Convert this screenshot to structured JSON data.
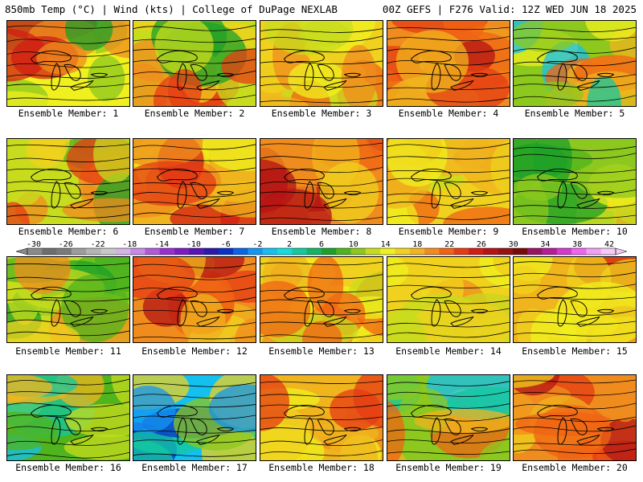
{
  "header": {
    "left": "850mb Temp (°C) | Wind (kts) | College of DuPage NEXLAB",
    "right": "00Z GEFS | F276 Valid: 12Z WED JUN 18 2025"
  },
  "members": [
    {
      "label": "Ensemble Member: 1",
      "palette": "mixed-green-orange"
    },
    {
      "label": "Ensemble Member: 2",
      "palette": "green-north-orange-south"
    },
    {
      "label": "Ensemble Member: 3",
      "palette": "yellow-orange"
    },
    {
      "label": "Ensemble Member: 4",
      "palette": "red-orange"
    },
    {
      "label": "Ensemble Member: 5",
      "palette": "yellow-cyan-east"
    },
    {
      "label": "Ensemble Member: 6",
      "palette": "green-north-orange-south"
    },
    {
      "label": "Ensemble Member: 7",
      "palette": "orange-red-west"
    },
    {
      "label": "Ensemble Member: 8",
      "palette": "red-orange"
    },
    {
      "label": "Ensemble Member: 9",
      "palette": "yellow-orange"
    },
    {
      "label": "Ensemble Member: 10",
      "palette": "green"
    },
    {
      "label": "Ensemble Member: 11",
      "palette": "green-north-orange-south"
    },
    {
      "label": "Ensemble Member: 12",
      "palette": "red-orange"
    },
    {
      "label": "Ensemble Member: 13",
      "palette": "yellow-orange"
    },
    {
      "label": "Ensemble Member: 14",
      "palette": "yellow-orange"
    },
    {
      "label": "Ensemble Member: 15",
      "palette": "orange-red-west"
    },
    {
      "label": "Ensemble Member: 16",
      "palette": "cyan-green"
    },
    {
      "label": "Ensemble Member: 17",
      "palette": "cyan-blue"
    },
    {
      "label": "Ensemble Member: 18",
      "palette": "orange-red-west"
    },
    {
      "label": "Ensemble Member: 19",
      "palette": "yellow-cyan-east"
    },
    {
      "label": "Ensemble Member: 20",
      "palette": "red-orange"
    }
  ],
  "colorbar": {
    "tick_labels": [
      "-30",
      "-26",
      "-22",
      "-18",
      "-14",
      "-10",
      "-6",
      "-2",
      "2",
      "6",
      "10",
      "14",
      "18",
      "22",
      "26",
      "30",
      "34",
      "38",
      "42"
    ],
    "colors": [
      "#8a8a8a",
      "#6e6e6e",
      "#7a7a7a",
      "#9c9c9c",
      "#b4b4b4",
      "#c8c8c8",
      "#d2b4e6",
      "#c78be6",
      "#b05ad8",
      "#9a2fd0",
      "#7a1ec2",
      "#5a14b4",
      "#2a1aa8",
      "#0a32c8",
      "#0a64e6",
      "#1496f0",
      "#14c0f0",
      "#14dcdc",
      "#14c8a0",
      "#14b464",
      "#1ea028",
      "#50b41e",
      "#8cc81e",
      "#c8dc1e",
      "#f0f01e",
      "#f0d21e",
      "#f0b41e",
      "#f08c1e",
      "#f06414",
      "#e63c14",
      "#d21e14",
      "#b41414",
      "#961414",
      "#7a0a0a",
      "#9a1464",
      "#b41e96",
      "#d23cc8",
      "#f064f0",
      "#f0a0f0",
      "#f5c8f5"
    ],
    "unit": "°C"
  }
}
